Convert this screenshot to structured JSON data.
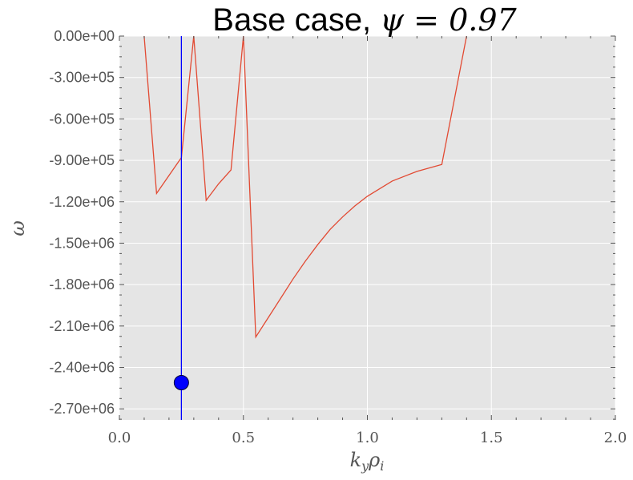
{
  "chart_data": {
    "type": "line",
    "title": "Base case, ",
    "title_math": "ψ = 0.97",
    "xlabel": "k",
    "xlabel_sub1": "y",
    "xlabel_mid": "ρ",
    "xlabel_sub2": "i",
    "ylabel": "ω",
    "xlim": [
      0.0,
      2.0
    ],
    "ylim": [
      -2780000,
      0
    ],
    "xticks": [
      0.0,
      0.5,
      1.0,
      1.5,
      2.0
    ],
    "xtick_labels": [
      "0.0",
      "0.5",
      "1.0",
      "1.5",
      "2.0"
    ],
    "yticks": [
      0,
      -300000,
      -600000,
      -900000,
      -1200000,
      -1500000,
      -1800000,
      -2100000,
      -2400000,
      -2700000
    ],
    "ytick_labels": [
      "0.00e+00",
      "-3.00e+05",
      "-6.00e+05",
      "-9.00e+05",
      "-1.20e+06",
      "-1.50e+06",
      "-1.80e+06",
      "-2.10e+06",
      "-2.40e+06",
      "-2.70e+06"
    ],
    "grid": true,
    "series": [
      {
        "color": "#e24a33",
        "x": [
          0.1,
          0.15,
          0.25,
          0.3,
          0.35,
          0.4,
          0.45,
          0.5,
          0.55,
          0.6,
          0.65,
          0.7,
          0.75,
          0.8,
          0.85,
          0.9,
          0.95,
          1.0,
          1.1,
          1.2,
          1.3,
          1.4
        ],
        "y": [
          0,
          -1140000,
          -880000,
          0,
          -1190000,
          -1070000,
          -970000,
          0,
          -2180000,
          -2040000,
          -1900000,
          -1760000,
          -1630000,
          -1510000,
          -1400000,
          -1310000,
          -1230000,
          -1160000,
          -1050000,
          -980000,
          -930000,
          0
        ]
      }
    ],
    "marker_line": {
      "x": 0.25,
      "color": "#0000ff"
    },
    "marker_point": {
      "x": 0.25,
      "y": -2510000,
      "color": "#0000ff"
    }
  }
}
